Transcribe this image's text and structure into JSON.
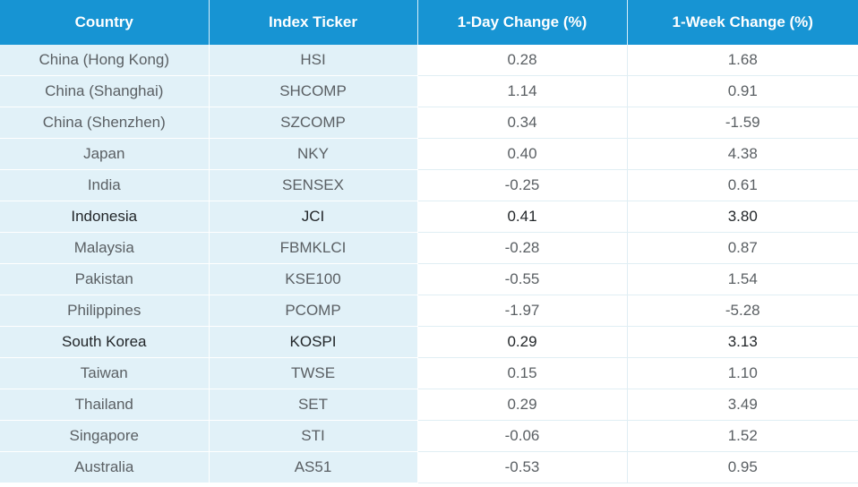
{
  "chart_data": {
    "type": "table",
    "columns": [
      "Country",
      "Index Ticker",
      "1-Day Change (%)",
      "1-Week Change (%)"
    ],
    "rows": [
      {
        "country": "China (Hong Kong)",
        "ticker": "HSI",
        "day": "0.28",
        "week": "1.68"
      },
      {
        "country": "China (Shanghai)",
        "ticker": "SHCOMP",
        "day": "1.14",
        "week": "0.91"
      },
      {
        "country": "China (Shenzhen)",
        "ticker": "SZCOMP",
        "day": "0.34",
        "week": "-1.59"
      },
      {
        "country": "Japan",
        "ticker": "NKY",
        "day": "0.40",
        "week": "4.38"
      },
      {
        "country": "India",
        "ticker": "SENSEX",
        "day": "-0.25",
        "week": "0.61"
      },
      {
        "country": "Indonesia",
        "ticker": "JCI",
        "day": "0.41",
        "week": "3.80"
      },
      {
        "country": "Malaysia",
        "ticker": "FBMKLCI",
        "day": "-0.28",
        "week": "0.87"
      },
      {
        "country": "Pakistan",
        "ticker": "KSE100",
        "day": "-0.55",
        "week": "1.54"
      },
      {
        "country": "Philippines",
        "ticker": "PCOMP",
        "day": "-1.97",
        "week": "-5.28"
      },
      {
        "country": "South Korea",
        "ticker": "KOSPI",
        "day": "0.29",
        "week": "3.13"
      },
      {
        "country": "Taiwan",
        "ticker": "TWSE",
        "day": "0.15",
        "week": "1.10"
      },
      {
        "country": "Thailand",
        "ticker": "SET",
        "day": "0.29",
        "week": "3.49"
      },
      {
        "country": "Singapore",
        "ticker": "STI",
        "day": "-0.06",
        "week": "1.52"
      },
      {
        "country": "Australia",
        "ticker": "AS51",
        "day": "-0.53",
        "week": "0.95"
      }
    ]
  },
  "colors": {
    "header_bg": "#1794d3",
    "header_text": "#ffffff",
    "shaded_cell_bg": "#e1f1f8",
    "body_text": "#5a5f63"
  }
}
